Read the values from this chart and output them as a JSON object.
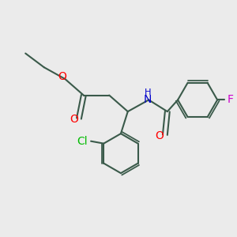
{
  "bg_color": "#ebebeb",
  "bond_color": "#3a5a4a",
  "bond_width": 1.5,
  "O_color": "#ff0000",
  "N_color": "#0000cc",
  "Cl_color": "#00bb00",
  "F_color": "#cc00cc",
  "figsize": [
    3.0,
    3.0
  ],
  "dpi": 100,
  "xlim": [
    0,
    10
  ],
  "ylim": [
    0,
    10
  ]
}
